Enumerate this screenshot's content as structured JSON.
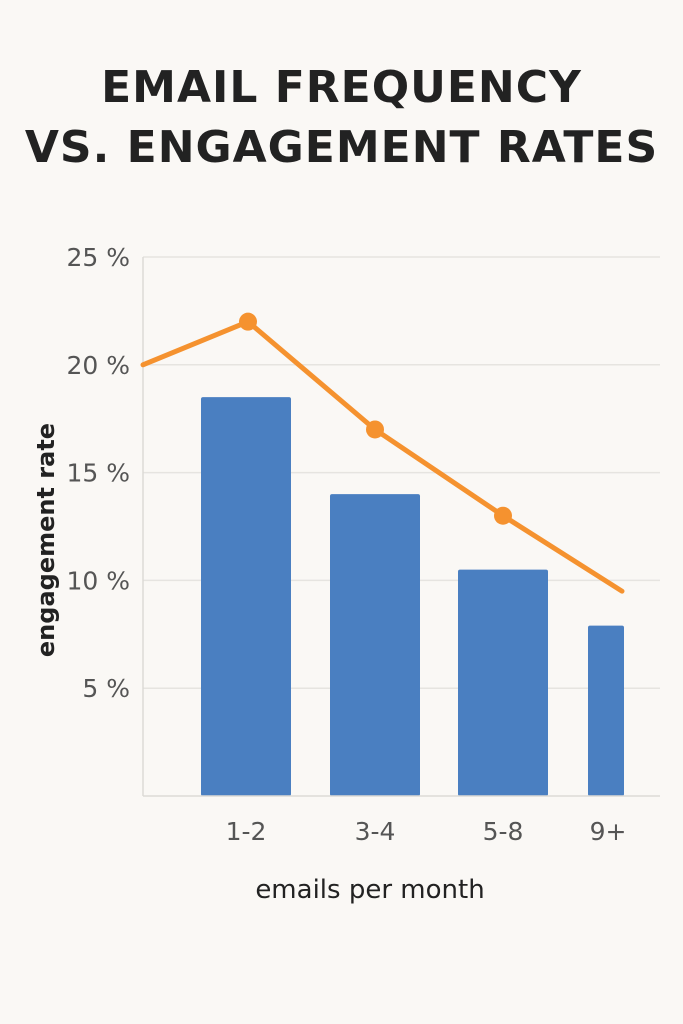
{
  "title_line1": "EMAIL FREQUENCY",
  "title_line2": "VS. ENGAGEMENT RATES",
  "chart_data": {
    "type": "bar",
    "categories": [
      "1-2",
      "3-4",
      "5-8",
      "9+"
    ],
    "series": [
      {
        "type": "bar",
        "values": [
          18.5,
          14.0,
          10.5,
          7.9
        ],
        "color": "#4a7fc1"
      },
      {
        "type": "line",
        "values": [
          22.0,
          17.0,
          13.0,
          9.5
        ],
        "color": "#f5922f",
        "extends_beyond_plot": true
      }
    ],
    "xlabel": "emails per month",
    "ylabel": "engagement rate",
    "ylim": [
      0,
      25
    ],
    "yticks": [
      5,
      10,
      15,
      20,
      25
    ],
    "ytick_labels": [
      "5 %",
      "10 %",
      "15 %",
      "20 %",
      "25 %"
    ],
    "grid": true
  }
}
